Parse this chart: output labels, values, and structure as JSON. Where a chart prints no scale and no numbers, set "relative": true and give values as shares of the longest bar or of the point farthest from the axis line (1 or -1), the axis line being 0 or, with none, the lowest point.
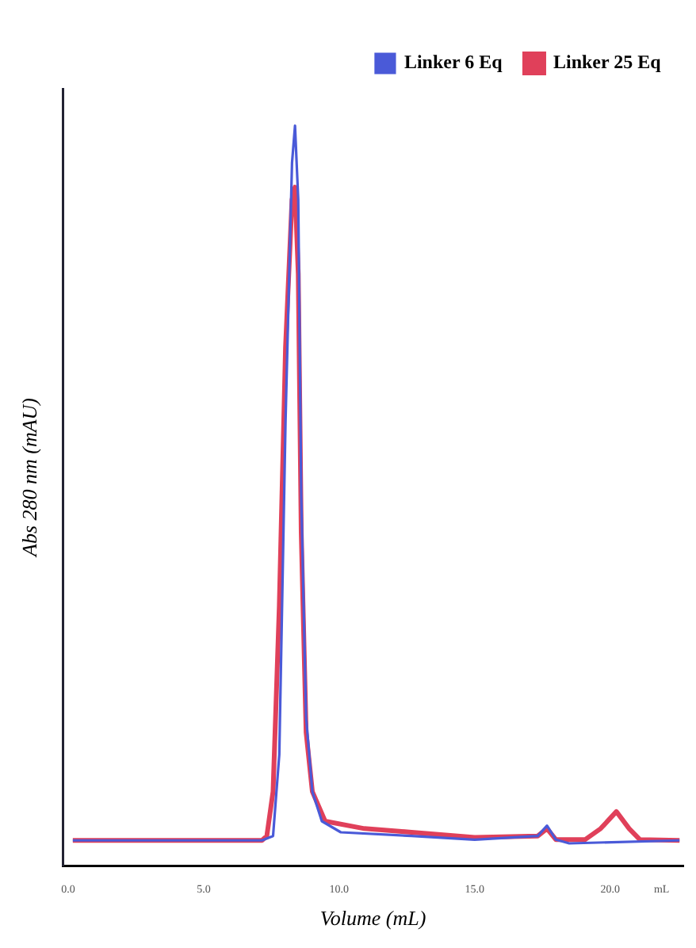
{
  "chart_data": {
    "type": "line",
    "relative": true,
    "xlabel": "Volume (mL)",
    "ylabel": "Abs 280 nm (mAU)",
    "xlim": [
      -0.2,
      22.7
    ],
    "xticks": [
      {
        "value": 0,
        "label": "0.0"
      },
      {
        "value": 5,
        "label": "5.0"
      },
      {
        "value": 10,
        "label": "10.0"
      },
      {
        "value": 15,
        "label": "15.0"
      },
      {
        "value": 20,
        "label": "20.0"
      },
      {
        "value": 21.9,
        "label": "mL"
      }
    ],
    "legend": "top right",
    "marker": "none",
    "line_style": "solid",
    "grid": false,
    "series": [
      {
        "name": "Linker 6 Eq",
        "color": "#4a5ad8",
        "x": [
          0.17,
          7.15,
          7.56,
          7.79,
          8.02,
          8.26,
          8.37,
          8.49,
          8.6,
          8.78,
          9.01,
          9.36,
          10.06,
          12.67,
          15.0,
          17.33,
          17.67,
          18.0,
          18.49,
          22.56
        ],
        "values": [
          0.034,
          0.034,
          0.04,
          0.15,
          0.6,
          0.95,
          1.0,
          0.9,
          0.5,
          0.2,
          0.1,
          0.06,
          0.045,
          0.04,
          0.035,
          0.04,
          0.054,
          0.035,
          0.03,
          0.034
        ]
      },
      {
        "name": "Linker 25 Eq",
        "color": "#e0405a",
        "x": [
          0.17,
          7.15,
          7.33,
          7.56,
          7.79,
          8.02,
          8.26,
          8.37,
          8.49,
          8.6,
          8.78,
          9.01,
          9.48,
          10.93,
          12.67,
          15.0,
          17.33,
          17.67,
          18.0,
          19.07,
          19.65,
          20.23,
          20.7,
          21.1,
          22.56
        ],
        "values": [
          0.034,
          0.034,
          0.04,
          0.1,
          0.35,
          0.7,
          0.9,
          0.917,
          0.8,
          0.45,
          0.18,
          0.1,
          0.06,
          0.05,
          0.045,
          0.038,
          0.04,
          0.05,
          0.035,
          0.035,
          0.05,
          0.073,
          0.05,
          0.035,
          0.034
        ]
      }
    ]
  }
}
